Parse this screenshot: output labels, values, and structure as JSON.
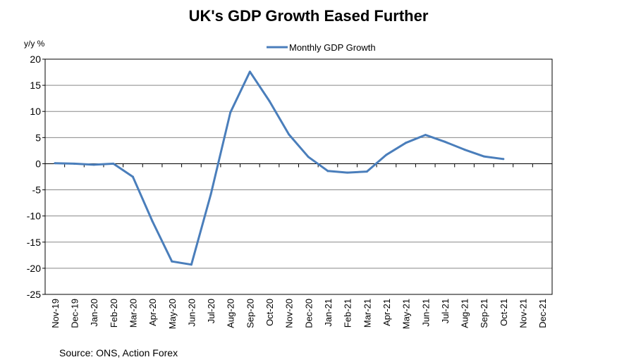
{
  "chart_data": {
    "type": "line",
    "title": "UK's GDP Growth Eased Further",
    "ylabel": "y/y %",
    "xlabel": "",
    "ylim": [
      -25,
      20
    ],
    "yticks": [
      20,
      15,
      10,
      5,
      0,
      -5,
      -10,
      -15,
      -20,
      -25
    ],
    "grid": true,
    "legend_position": "top-center",
    "categories": [
      "Nov-19",
      "Dec-19",
      "Jan-20",
      "Feb-20",
      "Mar-20",
      "Apr-20",
      "May-20",
      "Jun-20",
      "Jul-20",
      "Aug-20",
      "Sep-20",
      "Oct-20",
      "Nov-20",
      "Dec-20",
      "Jan-21",
      "Feb-21",
      "Mar-21",
      "Apr-21",
      "May-21",
      "Jun-21",
      "Jul-21",
      "Aug-21",
      "Sep-21",
      "Oct-21",
      "Nov-21",
      "Dec-21"
    ],
    "series": [
      {
        "name": "Monthly GDP Growth",
        "color": "#4A7EBB",
        "values": [
          0.1,
          0.0,
          -0.2,
          0.0,
          -2.5,
          -11.0,
          -18.7,
          -19.3,
          -5.8,
          9.8,
          17.6,
          12.0,
          5.6,
          1.3,
          -1.4,
          -1.7,
          -1.5,
          1.7,
          4.0,
          5.5,
          4.2,
          2.7,
          1.4,
          0.9,
          null,
          null
        ]
      }
    ],
    "source": "Source: ONS, Action Forex"
  }
}
